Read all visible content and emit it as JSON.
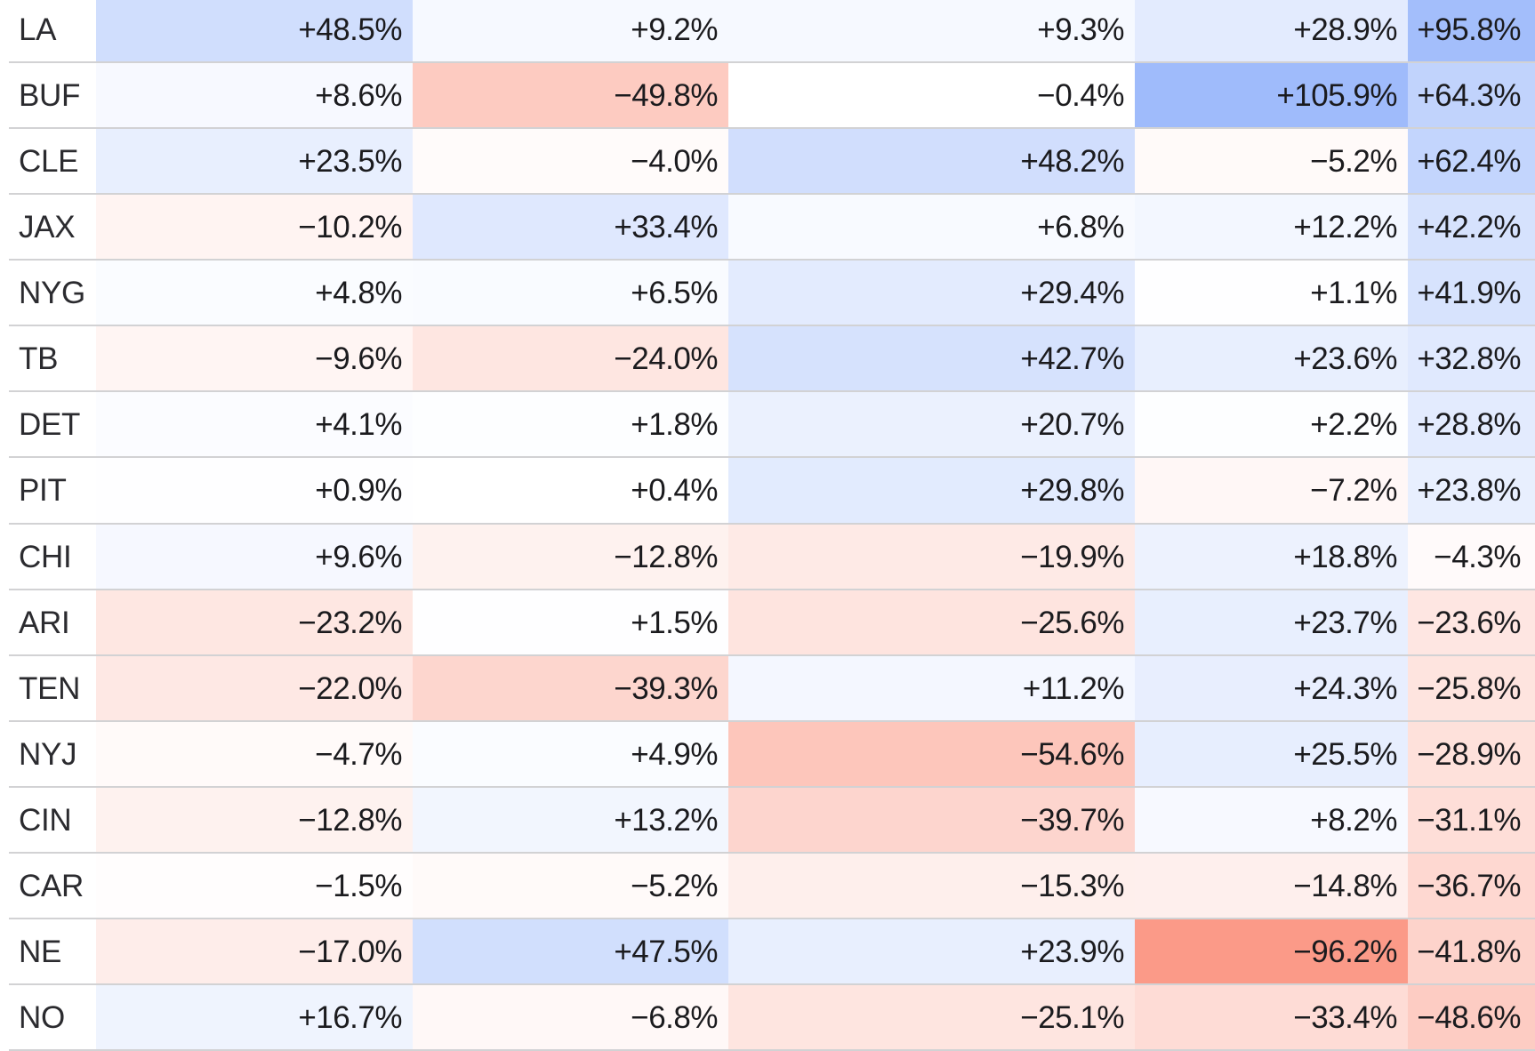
{
  "chart_data": {
    "type": "heatmap",
    "title": "",
    "unit": "%",
    "value_format": "signed_percent_1dp",
    "notes": "Cropped heatmap table: row labels are team codes, 5 value columns, no headers visible; last row (NO) is cut off at bottom edge",
    "rows": [
      {
        "team": "LA",
        "values": [
          48.5,
          9.2,
          9.3,
          28.9,
          95.8
        ]
      },
      {
        "team": "BUF",
        "values": [
          8.6,
          -49.8,
          -0.4,
          105.9,
          64.3
        ]
      },
      {
        "team": "CLE",
        "values": [
          23.5,
          -4.0,
          48.2,
          -5.2,
          62.4
        ]
      },
      {
        "team": "JAX",
        "values": [
          -10.2,
          33.4,
          6.8,
          12.2,
          42.2
        ]
      },
      {
        "team": "NYG",
        "values": [
          4.8,
          6.5,
          29.4,
          1.1,
          41.9
        ]
      },
      {
        "team": "TB",
        "values": [
          -9.6,
          -24.0,
          42.7,
          23.6,
          32.8
        ]
      },
      {
        "team": "DET",
        "values": [
          4.1,
          1.8,
          20.7,
          2.2,
          28.8
        ]
      },
      {
        "team": "PIT",
        "values": [
          0.9,
          0.4,
          29.8,
          -7.2,
          23.8
        ]
      },
      {
        "team": "CHI",
        "values": [
          9.6,
          -12.8,
          -19.9,
          18.8,
          -4.3
        ]
      },
      {
        "team": "ARI",
        "values": [
          -23.2,
          1.5,
          -25.6,
          23.7,
          -23.6
        ]
      },
      {
        "team": "TEN",
        "values": [
          -22.0,
          -39.3,
          11.2,
          24.3,
          -25.8
        ]
      },
      {
        "team": "NYJ",
        "values": [
          -4.7,
          4.9,
          -54.6,
          25.5,
          -28.9
        ]
      },
      {
        "team": "CIN",
        "values": [
          -12.8,
          13.2,
          -39.7,
          8.2,
          -31.1
        ]
      },
      {
        "team": "CAR",
        "values": [
          -1.5,
          -5.2,
          -15.3,
          -14.8,
          -36.7
        ]
      },
      {
        "team": "NE",
        "values": [
          -17.0,
          47.5,
          23.9,
          -96.2,
          -41.8
        ]
      },
      {
        "team": "NO",
        "values": [
          16.7,
          -6.8,
          -25.1,
          -33.4,
          -48.6
        ]
      }
    ],
    "color_scale": {
      "type": "diverging",
      "domain": [
        -100,
        100
      ],
      "negative_color": "#fb9683",
      "zero_color": "#ffffff",
      "positive_color": "#9fbbfb"
    },
    "colors": {
      "value_text": "#1b1b1e",
      "label_text": "#2b2b2f",
      "row_separator": "#d2d2d4",
      "background": "#ffffff"
    }
  }
}
